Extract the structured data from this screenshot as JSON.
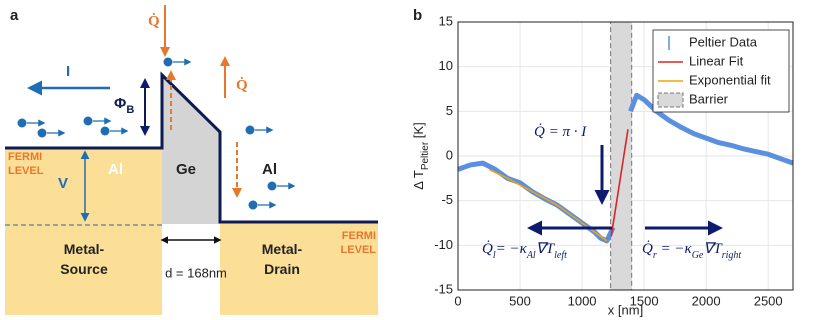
{
  "panel_a": {
    "label": "a",
    "heat_top": "Q̇",
    "heat_right": "Q̇",
    "current": "I",
    "barrier_height": {
      "symbol": "Φ",
      "subscript": "B"
    },
    "fermi_left": [
      "FERMI",
      "LEVEL"
    ],
    "fermi_right": [
      "FERMI",
      "LEVEL"
    ],
    "voltage": "V",
    "metal_left": "Al",
    "semiconductor": "Ge",
    "metal_right": "Al",
    "source": [
      "Metal-",
      "Source"
    ],
    "drain": [
      "Metal-",
      "Drain"
    ],
    "width": "d = 168nm"
  },
  "chart_data": {
    "type": "line",
    "panel_label": "b",
    "x_label": "x [nm]",
    "y_label": [
      {
        "t": "Δ T"
      },
      {
        "t": "Peltier",
        "sub": true
      },
      {
        "t": " [K]"
      }
    ],
    "xlim": [
      0,
      2700
    ],
    "xticks": [
      0,
      500,
      1000,
      1500,
      2000,
      2500
    ],
    "ylim": [
      -15,
      15
    ],
    "yticks": [
      -15,
      -10,
      -5,
      0,
      5,
      10,
      15
    ],
    "grid": true,
    "legend": "top-right",
    "series": [
      {
        "name": "Peltier Data",
        "color": "#5b8fe0",
        "x": [
          0,
          100,
          200,
          300,
          400,
          500,
          600,
          700,
          800,
          900,
          1000,
          1100,
          1150,
          1200,
          1250,
          1300,
          1390,
          1440,
          1500,
          1600,
          1700,
          1800,
          1900,
          2000,
          2100,
          2200,
          2300,
          2400,
          2500,
          2600,
          2700
        ],
        "values": [
          -1.5,
          -1,
          -0.8,
          -1.5,
          -2.5,
          -3,
          -4,
          -4.8,
          -5.5,
          -6.5,
          -7.5,
          -8.5,
          -9.2,
          -9.5,
          -8,
          null,
          5,
          6.8,
          6.3,
          5,
          4,
          3.2,
          2.5,
          2,
          1.5,
          1.2,
          0.8,
          0.5,
          0.2,
          -0.3,
          -0.8
        ]
      },
      {
        "name": "Linear Fit",
        "color": "#d62728",
        "x": [
          1235,
          1370
        ],
        "values": [
          -9,
          3
        ]
      },
      {
        "name": "Exponential fit",
        "color": "#f0a30a",
        "x": [
          250,
          400,
          600,
          800,
          1000,
          1100,
          1200
        ],
        "values": [
          -1.5,
          -2.5,
          -4,
          -5.5,
          -7.5,
          -8.5,
          -9.5
        ]
      }
    ],
    "regions": [
      {
        "name": "Barrier",
        "x": [
          1230,
          1400
        ],
        "color": "#d9d9d9"
      }
    ],
    "annotations": [
      [
        {
          "t": "Q̇ = π · I"
        }
      ],
      [
        {
          "t": "Q̇"
        },
        {
          "t": "l",
          "sub": true
        },
        {
          "t": "= −κ"
        },
        {
          "t": "Al",
          "sub": true
        },
        {
          "t": "∇T"
        },
        {
          "t": "left",
          "sub": true
        }
      ],
      [
        {
          "t": "Q̇"
        },
        {
          "t": "r",
          "sub": true
        },
        {
          "t": " = −κ"
        },
        {
          "t": "Ge",
          "sub": true
        },
        {
          "t": "∇T"
        },
        {
          "t": "right",
          "sub": true
        }
      ]
    ]
  }
}
